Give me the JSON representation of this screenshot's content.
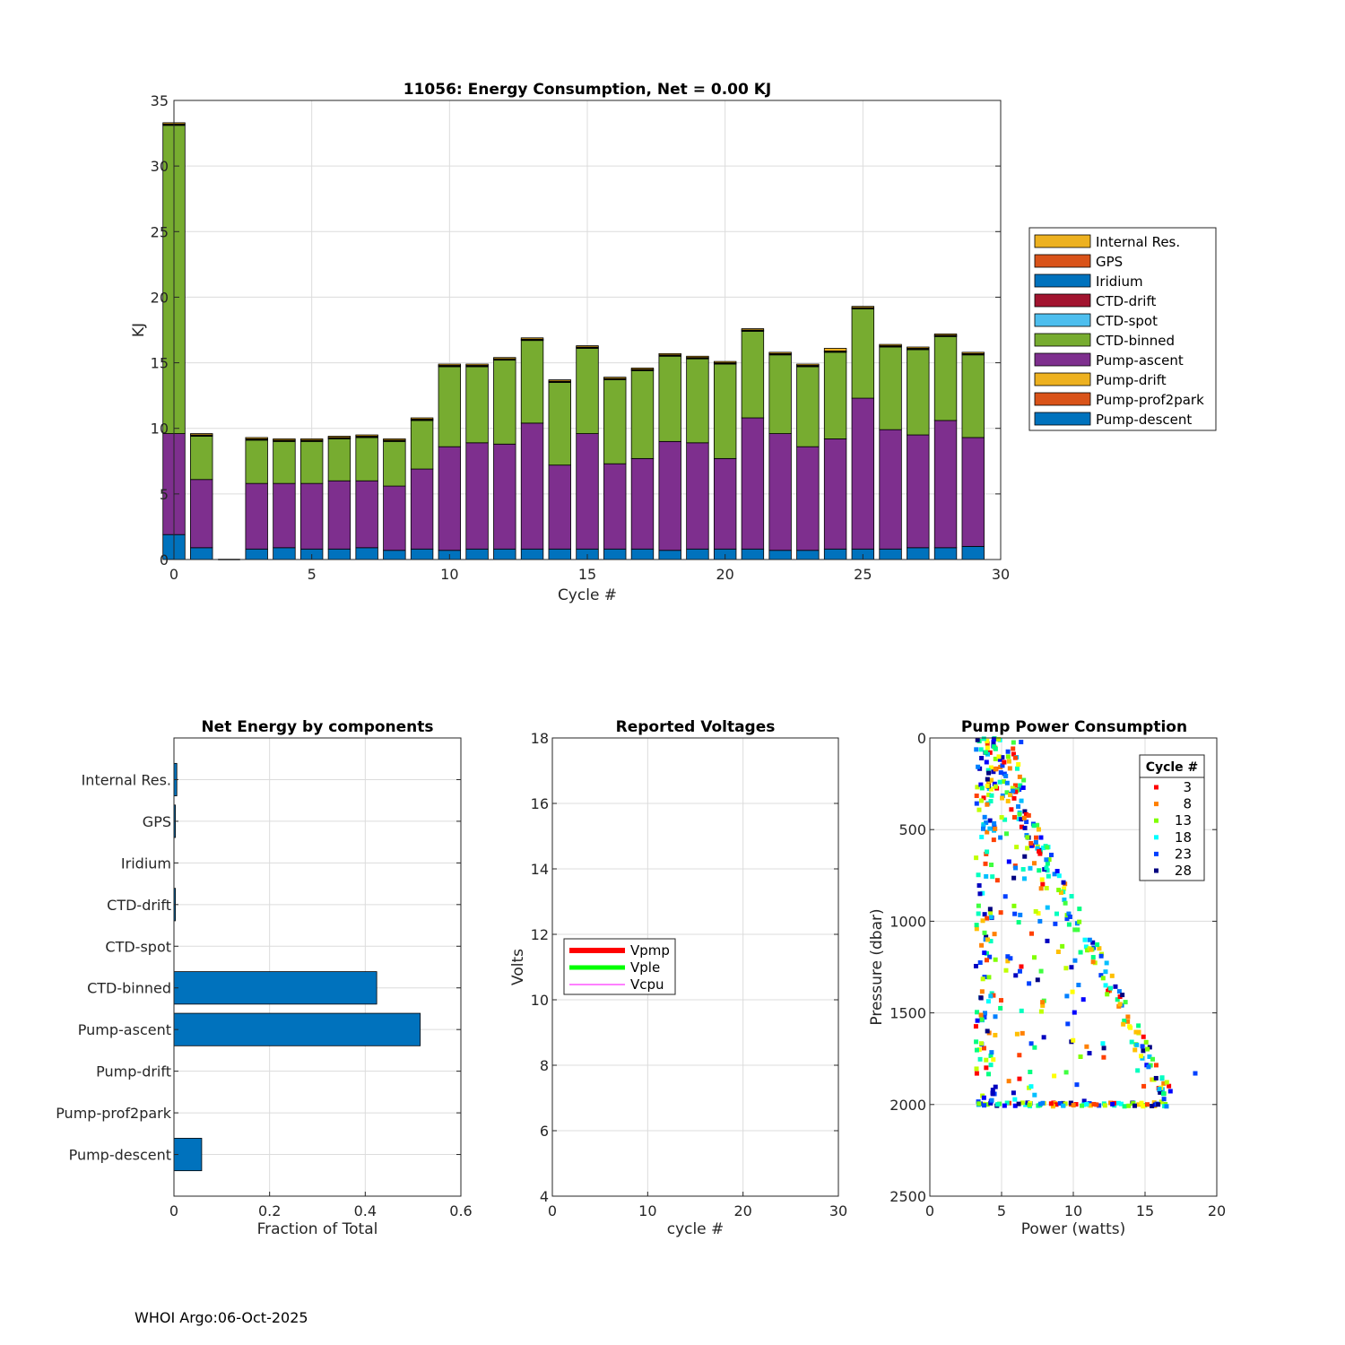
{
  "footer": "WHOI Argo:06-Oct-2025",
  "chart_data": [
    {
      "type": "bar",
      "stacked": true,
      "title": "11056: Energy Consumption,  Net =   0.00 KJ",
      "xlabel": "Cycle #",
      "ylabel": "KJ",
      "xlim": [
        0,
        30
      ],
      "ylim": [
        0,
        35
      ],
      "xticks": [
        "0",
        "5",
        "10",
        "15",
        "20",
        "25",
        "30"
      ],
      "yticks": [
        "0",
        "5",
        "10",
        "15",
        "20",
        "25",
        "30",
        "35"
      ],
      "legend_position": "right",
      "x": [
        0,
        1,
        2,
        3,
        4,
        5,
        6,
        7,
        8,
        9,
        10,
        11,
        12,
        13,
        14,
        15,
        16,
        17,
        18,
        19,
        20,
        21,
        22,
        23,
        24,
        25,
        26,
        27,
        28,
        29
      ],
      "series": [
        {
          "name": "Pump-descent",
          "color": "#0072BD",
          "values": [
            1.9,
            0.9,
            0,
            0.8,
            0.9,
            0.8,
            0.8,
            0.9,
            0.7,
            0.8,
            0.7,
            0.8,
            0.8,
            0.8,
            0.8,
            0.8,
            0.8,
            0.8,
            0.7,
            0.8,
            0.8,
            0.8,
            0.7,
            0.7,
            0.8,
            0.8,
            0.8,
            0.9,
            0.9,
            1.0
          ]
        },
        {
          "name": "Pump-prof2park",
          "color": "#D95319",
          "values": [
            0,
            0,
            0,
            0,
            0,
            0,
            0,
            0,
            0,
            0,
            0,
            0,
            0,
            0,
            0,
            0,
            0,
            0,
            0,
            0,
            0,
            0,
            0,
            0,
            0,
            0,
            0,
            0,
            0,
            0
          ]
        },
        {
          "name": "Pump-drift",
          "color": "#EDB120",
          "values": [
            0,
            0,
            0,
            0,
            0,
            0,
            0,
            0,
            0,
            0,
            0,
            0,
            0,
            0,
            0,
            0,
            0,
            0,
            0,
            0,
            0,
            0,
            0,
            0,
            0,
            0,
            0,
            0,
            0,
            0
          ]
        },
        {
          "name": "Pump-ascent",
          "color": "#7E2F8E",
          "values": [
            7.7,
            5.2,
            0,
            5.0,
            4.9,
            5.0,
            5.2,
            5.1,
            4.9,
            6.1,
            7.9,
            8.1,
            8.0,
            9.6,
            6.4,
            8.8,
            6.5,
            6.9,
            8.3,
            8.1,
            6.9,
            10.0,
            8.9,
            7.9,
            8.4,
            11.5,
            9.1,
            8.6,
            9.7,
            8.3
          ]
        },
        {
          "name": "CTD-binned",
          "color": "#77AC30",
          "values": [
            23.5,
            3.3,
            0,
            3.3,
            3.2,
            3.2,
            3.2,
            3.3,
            3.4,
            3.7,
            6.1,
            5.8,
            6.4,
            6.3,
            6.3,
            6.5,
            6.4,
            6.7,
            6.5,
            6.4,
            7.2,
            6.6,
            6.0,
            6.1,
            6.6,
            6.8,
            6.3,
            6.5,
            6.4,
            6.3
          ]
        },
        {
          "name": "CTD-spot",
          "color": "#4DBEEE",
          "values": [
            0,
            0,
            0,
            0,
            0,
            0,
            0,
            0,
            0,
            0,
            0,
            0,
            0,
            0,
            0,
            0,
            0,
            0,
            0,
            0,
            0,
            0,
            0,
            0,
            0,
            0,
            0,
            0,
            0,
            0
          ]
        },
        {
          "name": "CTD-drift",
          "color": "#A2142F",
          "values": [
            0.05,
            0.05,
            0,
            0.05,
            0.05,
            0.05,
            0.05,
            0.05,
            0.05,
            0.05,
            0.05,
            0.05,
            0.05,
            0.05,
            0.05,
            0.05,
            0.05,
            0.05,
            0.05,
            0.05,
            0.05,
            0.05,
            0.05,
            0.05,
            0.05,
            0.05,
            0.05,
            0.05,
            0.05,
            0.05
          ]
        },
        {
          "name": "Iridium",
          "color": "#0072BD",
          "values": [
            0,
            0,
            0,
            0,
            0,
            0,
            0,
            0,
            0,
            0,
            0,
            0,
            0,
            0,
            0,
            0,
            0,
            0,
            0,
            0,
            0,
            0,
            0,
            0,
            0,
            0,
            0,
            0,
            0,
            0
          ]
        },
        {
          "name": "GPS",
          "color": "#D95319",
          "values": [
            0.05,
            0.05,
            0,
            0.05,
            0.05,
            0.05,
            0.05,
            0.05,
            0.05,
            0.05,
            0.05,
            0.05,
            0.05,
            0.05,
            0.05,
            0.05,
            0.05,
            0.05,
            0.05,
            0.05,
            0.05,
            0.05,
            0.05,
            0.05,
            0.05,
            0.05,
            0.05,
            0.05,
            0.05,
            0.05
          ]
        },
        {
          "name": "Internal Res.",
          "color": "#EDB120",
          "values": [
            0.1,
            0.1,
            0,
            0.1,
            0.1,
            0.1,
            0.1,
            0.1,
            0.1,
            0.1,
            0.1,
            0.1,
            0.1,
            0.1,
            0.1,
            0.1,
            0.1,
            0.1,
            0.1,
            0.1,
            0.1,
            0.1,
            0.1,
            0.1,
            0.2,
            0.1,
            0.1,
            0.1,
            0.1,
            0.1
          ]
        }
      ],
      "legend": [
        "Internal Res.",
        "GPS",
        "Iridium",
        "CTD-drift",
        "CTD-spot",
        "CTD-binned",
        "Pump-ascent",
        "Pump-drift",
        "Pump-prof2park",
        "Pump-descent"
      ]
    },
    {
      "type": "bar",
      "orientation": "horizontal",
      "title": "Net Energy by components",
      "xlabel": "Fraction of Total",
      "xlim": [
        0,
        0.6
      ],
      "xticks": [
        "0",
        "0.2",
        "0.4",
        "0.6"
      ],
      "bar_color": "#0072BD",
      "categories": [
        "Internal Res.",
        "GPS",
        "Iridium",
        "CTD-drift",
        "CTD-spot",
        "CTD-binned",
        "Pump-ascent",
        "Pump-drift",
        "Pump-prof2park",
        "Pump-descent"
      ],
      "values": [
        0.006,
        0.003,
        0.0,
        0.003,
        0.0,
        0.424,
        0.515,
        0.0,
        0.0,
        0.058
      ]
    },
    {
      "type": "line",
      "title": "Reported Voltages",
      "xlabel": "cycle #",
      "ylabel": "Volts",
      "xlim": [
        0,
        30
      ],
      "ylim": [
        4,
        18
      ],
      "xticks": [
        "0",
        "10",
        "20",
        "30"
      ],
      "yticks": [
        "4",
        "6",
        "8",
        "10",
        "12",
        "14",
        "16",
        "18"
      ],
      "legend_position": "center-left",
      "series": [
        {
          "name": "Vpmp",
          "color": "#FF0000",
          "values": []
        },
        {
          "name": "Vple",
          "color": "#00FF00",
          "values": []
        },
        {
          "name": "Vcpu",
          "color": "#FF00FF",
          "values": []
        }
      ]
    },
    {
      "type": "scatter",
      "title": "Pump Power Consumption",
      "xlabel": "Power (watts)",
      "ylabel": "Pressure (dbar)",
      "xlim": [
        0,
        20
      ],
      "ylim": [
        0,
        2500
      ],
      "y_reversed": true,
      "xticks": [
        "0",
        "5",
        "10",
        "15",
        "20"
      ],
      "yticks": [
        "0",
        "500",
        "1000",
        "1500",
        "2000",
        "2500"
      ],
      "legend_title": "Cycle #",
      "legend_position": "top-right",
      "series": [
        {
          "name": "3",
          "color": "#FF0000"
        },
        {
          "name": "8",
          "color": "#FF8000"
        },
        {
          "name": "13",
          "color": "#80FF00"
        },
        {
          "name": "18",
          "color": "#00FFFF"
        },
        {
          "name": "23",
          "color": "#0040FF"
        },
        {
          "name": "28",
          "color": "#000080"
        }
      ],
      "points_per_cycle_color_groups": [
        "#FF0000",
        "#FF4000",
        "#FF8000",
        "#FFBF00",
        "#FFFF00",
        "#BFFF00",
        "#80FF00",
        "#40FF40",
        "#00FF80",
        "#00FFBF",
        "#00FFFF",
        "#00BFFF",
        "#0080FF",
        "#0040FF",
        "#0000FF",
        "#0000BF",
        "#000080"
      ]
    }
  ]
}
